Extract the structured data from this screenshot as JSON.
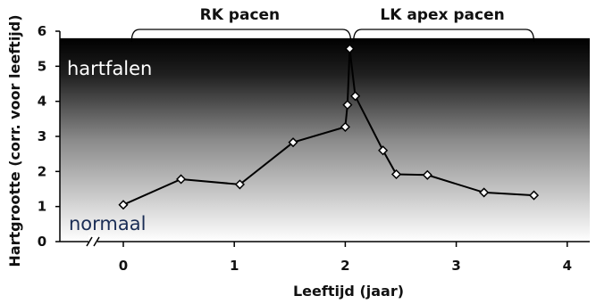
{
  "chart_data": {
    "type": "line",
    "title": "",
    "xlabel": "Leeftijd (jaar)",
    "ylabel": "Hartgrootte (corr. voor leeftijd)",
    "xlim": [
      -0.55,
      4.25
    ],
    "ylim": [
      0,
      6
    ],
    "x_ticks": [
      0,
      1,
      2,
      3,
      4
    ],
    "y_ticks": [
      0,
      1,
      2,
      3,
      4,
      5,
      6
    ],
    "x_tick_labels": [
      "0",
      "1",
      "2",
      "3",
      "4"
    ],
    "y_tick_labels": [
      "0",
      "1",
      "2",
      "3",
      "4",
      "5",
      "6"
    ],
    "grid": false,
    "legend": "none",
    "x_axis_break": true,
    "series": [
      {
        "x": [
          0.0,
          0.52,
          1.05,
          1.53,
          2.0,
          2.02,
          2.04,
          2.09,
          2.34,
          2.46,
          2.74,
          3.25,
          3.7
        ],
        "y": [
          1.05,
          1.78,
          1.63,
          2.83,
          3.27,
          3.9,
          5.5,
          4.15,
          2.6,
          1.92,
          1.9,
          1.4,
          1.32
        ],
        "color": "#000000",
        "marker": "diamond"
      }
    ],
    "background_gradient": {
      "top_color": "#000000",
      "bottom_color": "#ffffff",
      "y_top": 5.8,
      "y_bottom": 0
    },
    "annotations": {
      "top_zone": "hartfalen",
      "bottom_zone": "normaal"
    },
    "brackets": [
      {
        "label": "RK pacen",
        "x_start": 0.05,
        "x_end": 2.05
      },
      {
        "label": "LK apex pacen",
        "x_start": 2.05,
        "x_end": 3.7
      }
    ]
  }
}
